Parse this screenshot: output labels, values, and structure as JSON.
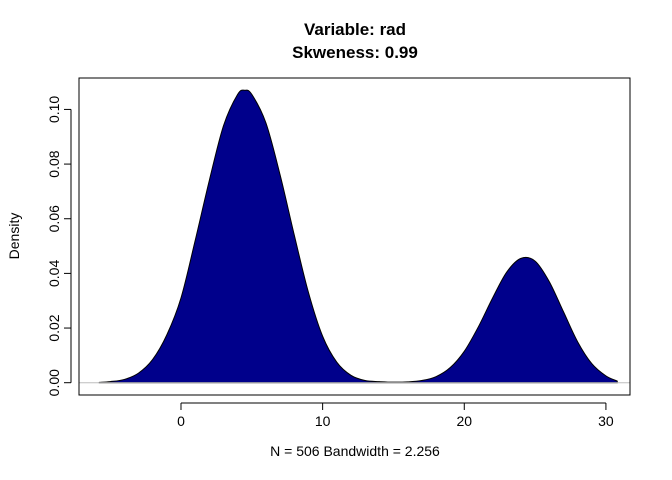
{
  "chart_data": {
    "type": "area",
    "title": "Variable: rad",
    "subtitle": "Skweness: 0.99",
    "xlabel": "N = 506   Bandwidth = 2.256",
    "ylabel": "Density",
    "xlim": [
      -7.2,
      31.7
    ],
    "ylim": [
      -0.0045,
      0.1115
    ],
    "x_ticks": [
      0,
      10,
      20,
      30
    ],
    "x_tick_labels": [
      "0",
      "10",
      "20",
      "30"
    ],
    "y_ticks": [
      0.0,
      0.02,
      0.04,
      0.06,
      0.08,
      0.1
    ],
    "y_tick_labels": [
      "0.00",
      "0.02",
      "0.04",
      "0.06",
      "0.08",
      "0.10"
    ],
    "grid": false,
    "fill_color": "#00008B",
    "baseline_color": "#BEBEBE",
    "series": [
      {
        "x": [
          -5.77,
          -5,
          -4,
          -3,
          -2,
          -1,
          0,
          1,
          2,
          3,
          4,
          4.5,
          5,
          6,
          7,
          8,
          9,
          10,
          11,
          12,
          13,
          14,
          15,
          16,
          17,
          18,
          19,
          20,
          21,
          22,
          23,
          24,
          25,
          26,
          27,
          28,
          29,
          30,
          30.8
        ],
        "y": [
          0.0001,
          0.0004,
          0.0012,
          0.0035,
          0.0085,
          0.0175,
          0.031,
          0.052,
          0.074,
          0.094,
          0.1055,
          0.107,
          0.1055,
          0.095,
          0.076,
          0.054,
          0.033,
          0.017,
          0.0075,
          0.0027,
          0.0008,
          0.0004,
          0.0002,
          0.0003,
          0.0008,
          0.0022,
          0.0055,
          0.0115,
          0.0205,
          0.031,
          0.0405,
          0.0455,
          0.0445,
          0.037,
          0.026,
          0.015,
          0.007,
          0.0025,
          0.0006
        ]
      }
    ]
  }
}
